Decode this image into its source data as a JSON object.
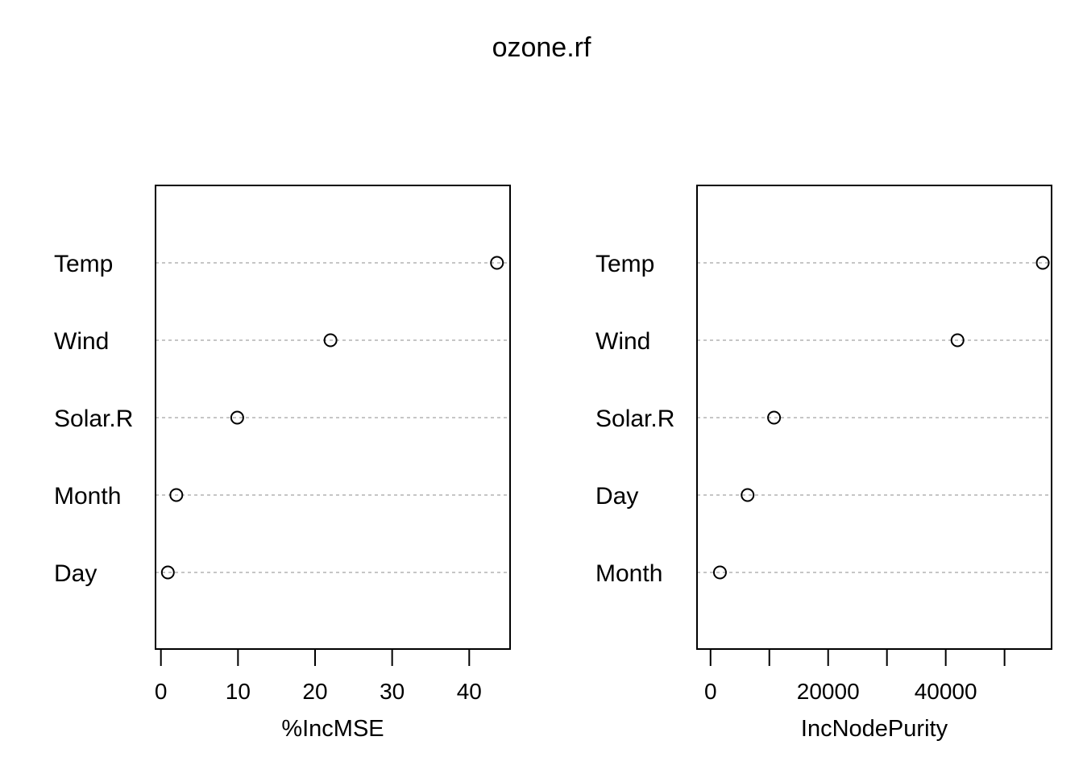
{
  "page": {
    "title": "ozone.rf"
  },
  "chart_data": [
    {
      "type": "dotchart",
      "xlabel": "%IncMSE",
      "categories": [
        "Temp",
        "Wind",
        "Solar.R",
        "Month",
        "Day"
      ],
      "values": [
        43.6,
        22.0,
        9.9,
        2.0,
        0.9
      ],
      "xlim": [
        -0.7,
        45.3
      ],
      "xticks": [
        0,
        10,
        20,
        30,
        40
      ],
      "xtick_labels": [
        "0",
        "10",
        "20",
        "30",
        "40"
      ],
      "grid": "dotted horizontal",
      "marker": "open-circle"
    },
    {
      "type": "dotchart",
      "xlabel": "IncNodePurity",
      "categories": [
        "Temp",
        "Wind",
        "Solar.R",
        "Day",
        "Month"
      ],
      "values": [
        56500,
        42000,
        10800,
        6300,
        1600
      ],
      "xlim": [
        -2300,
        58000
      ],
      "xticks": [
        0,
        10000,
        20000,
        30000,
        40000,
        50000
      ],
      "xtick_labels": [
        "0",
        "",
        "20000",
        "",
        "40000",
        ""
      ],
      "grid": "dotted horizontal",
      "marker": "open-circle"
    }
  ],
  "colors": {
    "grid": "#b3b3b3",
    "axis": "#000000",
    "marker": "#000000"
  }
}
